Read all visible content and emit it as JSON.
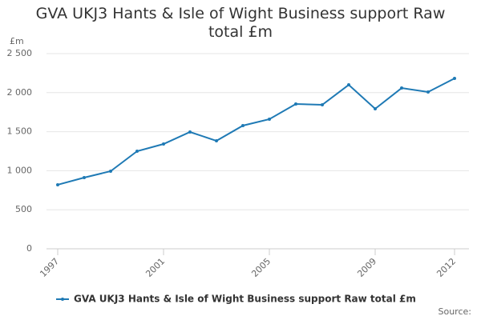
{
  "chart_data": {
    "type": "line",
    "title": "GVA UKJ3 Hants & Isle of Wight Business support Raw total £m",
    "y_label": "£m",
    "source": "Source:",
    "x": [
      1997,
      1998,
      1999,
      2000,
      2001,
      2002,
      2003,
      2004,
      2005,
      2006,
      2007,
      2008,
      2009,
      2010,
      2011,
      2012
    ],
    "series": [
      {
        "name": "GVA UKJ3 Hants & Isle of Wight Business support Raw total £m",
        "color": "#1f7ab5",
        "values": [
          820,
          912,
          994,
          1250,
          1342,
          1496,
          1383,
          1578,
          1660,
          1855,
          1844,
          2100,
          1793,
          2059,
          2008,
          2182
        ]
      }
    ],
    "xlim": [
      1997,
      2012
    ],
    "xticks": [
      1997,
      2001,
      2005,
      2009,
      2012
    ],
    "ylim": [
      0,
      2500
    ],
    "yticks": [
      0,
      500,
      {
        "value": 1000,
        "label": "1 000"
      },
      {
        "value": 1500,
        "label": "1 500"
      },
      {
        "value": 2000,
        "label": "2 000"
      },
      {
        "value": 2500,
        "label": "2 500"
      }
    ],
    "grid": true,
    "legend": "bottom"
  }
}
